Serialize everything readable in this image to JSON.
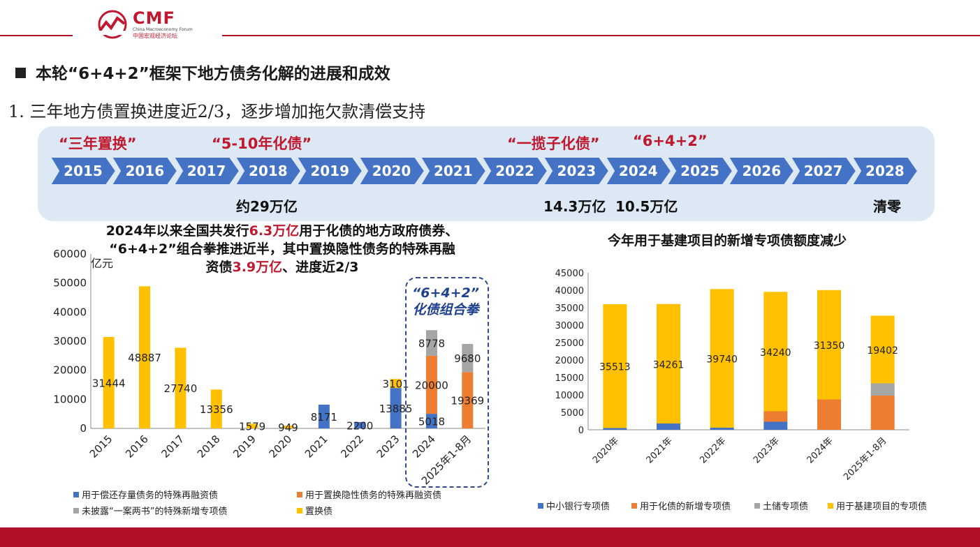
{
  "logo": {
    "name": "CMF",
    "sub_en": "China Macroeconomy Forum",
    "sub_cn": "中国宏观经济论坛"
  },
  "heading": "本轮“6+4+2”框架下地方债务化解的进展和成效",
  "subheading": "1. 三年地方债置换进度近2/3，逐步增加拖欠款清偿支持",
  "timeline": {
    "years": [
      "2015",
      "2016",
      "2017",
      "2018",
      "2019",
      "2020",
      "2021",
      "2022",
      "2023",
      "2024",
      "2025",
      "2026",
      "2027",
      "2028"
    ],
    "quotes": [
      {
        "text": "“三年置换”"
      },
      {
        "text": "“5-10年化债”"
      },
      {
        "text": "“一揽子化债”"
      },
      {
        "text": "“6+4+2”"
      }
    ],
    "amounts": [
      {
        "text": "约29万亿"
      },
      {
        "text": "14.3万亿"
      },
      {
        "text": "10.5万亿"
      },
      {
        "text": "清零"
      }
    ],
    "colors": {
      "chevron": "#4472c4",
      "box": "#dce8f4",
      "quote": "#c0182e"
    }
  },
  "left_title": {
    "line1_a": "2024年以来全国共发行",
    "line1_red": "6.3万亿",
    "line1_b": "用于化债的地方政府债券、",
    "line2": "“6+4+2”组合拳推进近半，其中置换隐性债务的特殊再融",
    "line3_a": "资债",
    "line3_red": "3.9万亿",
    "line3_b": "、进度近2/3"
  },
  "annotation": {
    "line1": "“6+4+2”",
    "line2": "化债组合拳"
  },
  "right_title": "今年用于基建项目的新增专项债额度减少",
  "chart_data": [
    {
      "type": "bar",
      "stacked": true,
      "ylabel": "亿元",
      "ylim": [
        0,
        60000
      ],
      "yticks": [
        0,
        10000,
        20000,
        30000,
        40000,
        50000,
        60000
      ],
      "categories": [
        "2015",
        "2016",
        "2017",
        "2018",
        "2019",
        "2020",
        "2021",
        "2022",
        "2023",
        "2024",
        "2025年1-8月"
      ],
      "series": [
        {
          "name": "用于偿还存量债务的特殊再融资债",
          "color": "#4472c4",
          "values": [
            0,
            0,
            0,
            0,
            0,
            0,
            8171,
            2200,
            13885,
            5018,
            0
          ],
          "labels": [
            "",
            "",
            "",
            "",
            "",
            "",
            "8171",
            "2200",
            "13885",
            "5018",
            ""
          ]
        },
        {
          "name": "用于置换隐性债务的特殊再融资债",
          "color": "#ed7d31",
          "values": [
            0,
            0,
            0,
            0,
            0,
            0,
            0,
            0,
            0,
            20000,
            19369
          ],
          "labels": [
            "",
            "",
            "",
            "",
            "",
            "",
            "",
            "",
            "",
            "20000",
            "19369"
          ]
        },
        {
          "name": "未披露“一案两书”的特殊新增专项债",
          "color": "#a5a5a5",
          "values": [
            0,
            0,
            0,
            0,
            0,
            0,
            0,
            0,
            0,
            8778,
            9680
          ],
          "labels": [
            "",
            "",
            "",
            "",
            "",
            "",
            "",
            "",
            "",
            "8778",
            "9680"
          ]
        },
        {
          "name": "置换债",
          "color": "#ffc000",
          "values": [
            31444,
            48887,
            27740,
            13356,
            1579,
            949,
            0,
            0,
            3101,
            0,
            0
          ],
          "labels": [
            "31444",
            "48887",
            "27740",
            "13356",
            "1579",
            "949",
            "",
            "",
            "3101",
            "",
            ""
          ]
        }
      ],
      "legend_position": "bottom"
    },
    {
      "type": "bar",
      "stacked": true,
      "ylim": [
        0,
        45000
      ],
      "yticks": [
        0,
        5000,
        10000,
        15000,
        20000,
        25000,
        30000,
        35000,
        40000,
        45000
      ],
      "categories": [
        "2020年",
        "2021年",
        "2022年",
        "2023年",
        "2024年",
        "2025年1-8月"
      ],
      "series": [
        {
          "name": "中小银行专项债",
          "color": "#4472c4",
          "values": [
            500,
            1800,
            600,
            2300,
            0,
            0
          ]
        },
        {
          "name": "用于化债的新增专项债",
          "color": "#ed7d31",
          "values": [
            0,
            0,
            0,
            3000,
            8700,
            9800
          ]
        },
        {
          "name": "土储专项债",
          "color": "#a5a5a5",
          "values": [
            0,
            0,
            0,
            0,
            0,
            3500
          ]
        },
        {
          "name": "用于基建项目的专项债",
          "color": "#ffc000",
          "values": [
            35513,
            34261,
            39740,
            34240,
            31350,
            19402
          ],
          "labels": [
            "35513",
            "34261",
            "39740",
            "34240",
            "31350",
            "19402"
          ]
        }
      ],
      "legend_position": "bottom"
    }
  ]
}
